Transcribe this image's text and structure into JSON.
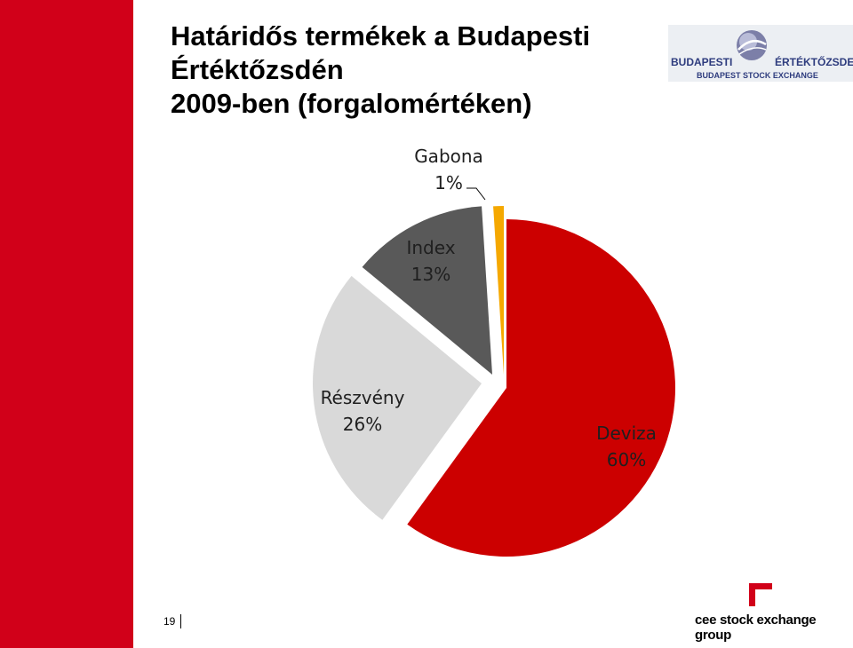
{
  "title_lines": [
    "Határidős termékek a Budapesti",
    "Értéktőzsdén",
    "2009-ben (forgalomértéken)"
  ],
  "bse_logo": {
    "left_word": "BUDAPESTI",
    "right_word": "ÉRTÉKTŐZSDE",
    "subtitle": "BUDAPEST STOCK EXCHANGE"
  },
  "page_number": "19",
  "footer_logo_text": "cee stock exchange group",
  "colors": {
    "brand_red": "#d10019",
    "deviza": "#cc0000",
    "reszveny": "#d9d9d9",
    "index": "#595959",
    "gabona": "#f5a800"
  },
  "chart_data": {
    "type": "pie",
    "slices": [
      {
        "label": "Deviza",
        "value": 60,
        "value_label": "60%",
        "color": "#cc0000"
      },
      {
        "label": "Részvény",
        "value": 26,
        "value_label": "26%",
        "color": "#d9d9d9"
      },
      {
        "label": "Index",
        "value": 13,
        "value_label": "13%",
        "color": "#595959"
      },
      {
        "label": "Gabona",
        "value": 1,
        "value_label": "1%",
        "color": "#f5a800"
      }
    ],
    "exploded": true,
    "start_angle": "12 o'clock, clockwise",
    "legend": "none"
  }
}
